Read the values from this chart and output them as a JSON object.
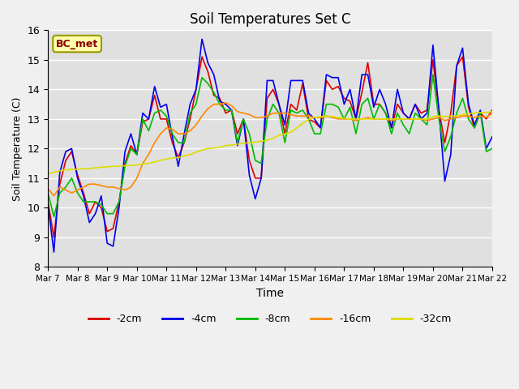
{
  "title": "Soil Temperatures Set C",
  "xlabel": "Time",
  "ylabel": "Soil Temperature (C)",
  "ylim": [
    8.0,
    16.0
  ],
  "yticks": [
    8.0,
    9.0,
    10.0,
    11.0,
    12.0,
    13.0,
    14.0,
    15.0,
    16.0
  ],
  "xtick_labels": [
    "Mar 7",
    "Mar 8",
    "Mar 9",
    "Mar 10",
    "Mar 11",
    "Mar 12",
    "Mar 13",
    "Mar 14",
    "Mar 15",
    "Mar 16",
    "Mar 17",
    "Mar 18",
    "Mar 19",
    "Mar 20",
    "Mar 21",
    "Mar 22"
  ],
  "legend_label": "BC_met",
  "series_labels": [
    "-2cm",
    "-4cm",
    "-8cm",
    "-16cm",
    "-32cm"
  ],
  "series_colors": [
    "#dd0000",
    "#0000ee",
    "#00bb00",
    "#ff8800",
    "#dddd00"
  ],
  "background_color": "#e0e0e0",
  "fig_facecolor": "#f0f0f0",
  "t_2cm": [
    10.2,
    9.0,
    10.8,
    11.6,
    11.9,
    11.1,
    10.5,
    9.8,
    10.2,
    10.0,
    9.2,
    9.3,
    10.2,
    11.5,
    12.1,
    11.8,
    12.9,
    13.0,
    13.8,
    13.0,
    13.0,
    12.2,
    11.7,
    12.2,
    13.0,
    14.0,
    15.1,
    14.6,
    13.8,
    13.7,
    13.2,
    13.3,
    12.5,
    13.0,
    11.6,
    11.0,
    11.0,
    13.7,
    14.0,
    13.5,
    12.5,
    13.5,
    13.3,
    14.2,
    13.0,
    12.9,
    12.7,
    14.3,
    14.0,
    14.1,
    13.7,
    13.6,
    13.0,
    13.9,
    14.9,
    13.5,
    13.5,
    13.2,
    12.7,
    13.5,
    13.2,
    13.0,
    13.5,
    13.2,
    13.3,
    15.0,
    13.3,
    12.2,
    13.2,
    14.8,
    15.1,
    13.4,
    12.7,
    13.2,
    13.0,
    13.3
  ],
  "t_4cm": [
    10.1,
    8.5,
    11.2,
    11.9,
    12.0,
    11.0,
    10.4,
    9.5,
    9.8,
    10.4,
    8.8,
    8.7,
    10.0,
    11.9,
    12.5,
    11.8,
    13.2,
    13.0,
    14.1,
    13.4,
    13.5,
    12.4,
    11.4,
    12.5,
    13.5,
    14.0,
    15.7,
    14.9,
    14.5,
    13.6,
    13.5,
    13.3,
    12.1,
    13.0,
    11.1,
    10.3,
    11.0,
    14.3,
    14.3,
    13.5,
    12.8,
    14.3,
    14.3,
    14.3,
    13.2,
    13.0,
    12.7,
    14.5,
    14.4,
    14.4,
    13.5,
    14.0,
    13.0,
    14.5,
    14.5,
    13.4,
    14.0,
    13.5,
    12.7,
    14.0,
    13.2,
    13.0,
    13.5,
    13.0,
    13.2,
    15.5,
    13.3,
    10.9,
    11.8,
    14.8,
    15.4,
    13.5,
    12.8,
    13.3,
    12.0,
    12.4
  ],
  "t_8cm": [
    10.5,
    9.7,
    10.5,
    10.7,
    11.0,
    10.5,
    10.2,
    10.2,
    10.2,
    10.1,
    9.8,
    9.8,
    10.2,
    11.4,
    12.0,
    11.8,
    13.0,
    12.6,
    13.2,
    13.3,
    13.1,
    12.5,
    12.2,
    12.2,
    13.2,
    13.5,
    14.4,
    14.2,
    13.9,
    13.5,
    13.3,
    13.3,
    12.2,
    13.0,
    12.5,
    11.6,
    11.5,
    13.0,
    13.5,
    13.2,
    12.2,
    13.3,
    13.2,
    13.3,
    13.0,
    12.5,
    12.5,
    13.5,
    13.5,
    13.4,
    13.0,
    13.4,
    12.5,
    13.5,
    13.7,
    13.0,
    13.5,
    13.2,
    12.5,
    13.2,
    12.8,
    12.5,
    13.2,
    13.0,
    12.8,
    14.5,
    13.0,
    11.9,
    12.4,
    13.2,
    13.7,
    13.0,
    12.7,
    13.2,
    11.9,
    12.0
  ],
  "t_16cm": [
    10.65,
    10.4,
    10.7,
    10.6,
    10.5,
    10.6,
    10.7,
    10.8,
    10.8,
    10.75,
    10.7,
    10.7,
    10.65,
    10.6,
    10.7,
    11.0,
    11.5,
    11.8,
    12.2,
    12.5,
    12.7,
    12.65,
    12.5,
    12.5,
    12.6,
    12.8,
    13.1,
    13.35,
    13.5,
    13.5,
    13.55,
    13.45,
    13.25,
    13.2,
    13.15,
    13.05,
    13.05,
    13.1,
    13.2,
    13.2,
    13.2,
    13.15,
    13.1,
    13.1,
    13.1,
    13.05,
    13.05,
    13.1,
    13.05,
    13.0,
    13.0,
    13.0,
    12.95,
    13.0,
    13.05,
    13.0,
    13.0,
    13.0,
    12.95,
    13.0,
    13.0,
    13.0,
    13.0,
    13.0,
    12.95,
    13.0,
    13.05,
    12.95,
    13.0,
    13.05,
    13.1,
    13.1,
    13.05,
    13.1,
    13.05,
    13.2
  ],
  "t_32cm": [
    11.15,
    11.2,
    11.25,
    11.28,
    11.3,
    11.3,
    11.32,
    11.33,
    11.35,
    11.37,
    11.38,
    11.4,
    11.4,
    11.42,
    11.43,
    11.45,
    11.48,
    11.5,
    11.55,
    11.6,
    11.65,
    11.68,
    11.7,
    11.75,
    11.8,
    11.88,
    11.95,
    12.0,
    12.02,
    12.05,
    12.1,
    12.12,
    12.15,
    12.18,
    12.2,
    12.22,
    12.25,
    12.28,
    12.35,
    12.45,
    12.5,
    12.55,
    12.7,
    12.85,
    12.98,
    13.05,
    13.08,
    13.1,
    13.08,
    13.05,
    13.02,
    13.0,
    13.0,
    13.0,
    13.0,
    13.0,
    13.0,
    13.0,
    13.0,
    13.0,
    13.0,
    13.0,
    13.0,
    13.0,
    13.0,
    13.08,
    13.1,
    13.08,
    13.1,
    13.1,
    13.15,
    13.18,
    13.2,
    13.22,
    13.22,
    13.25
  ]
}
